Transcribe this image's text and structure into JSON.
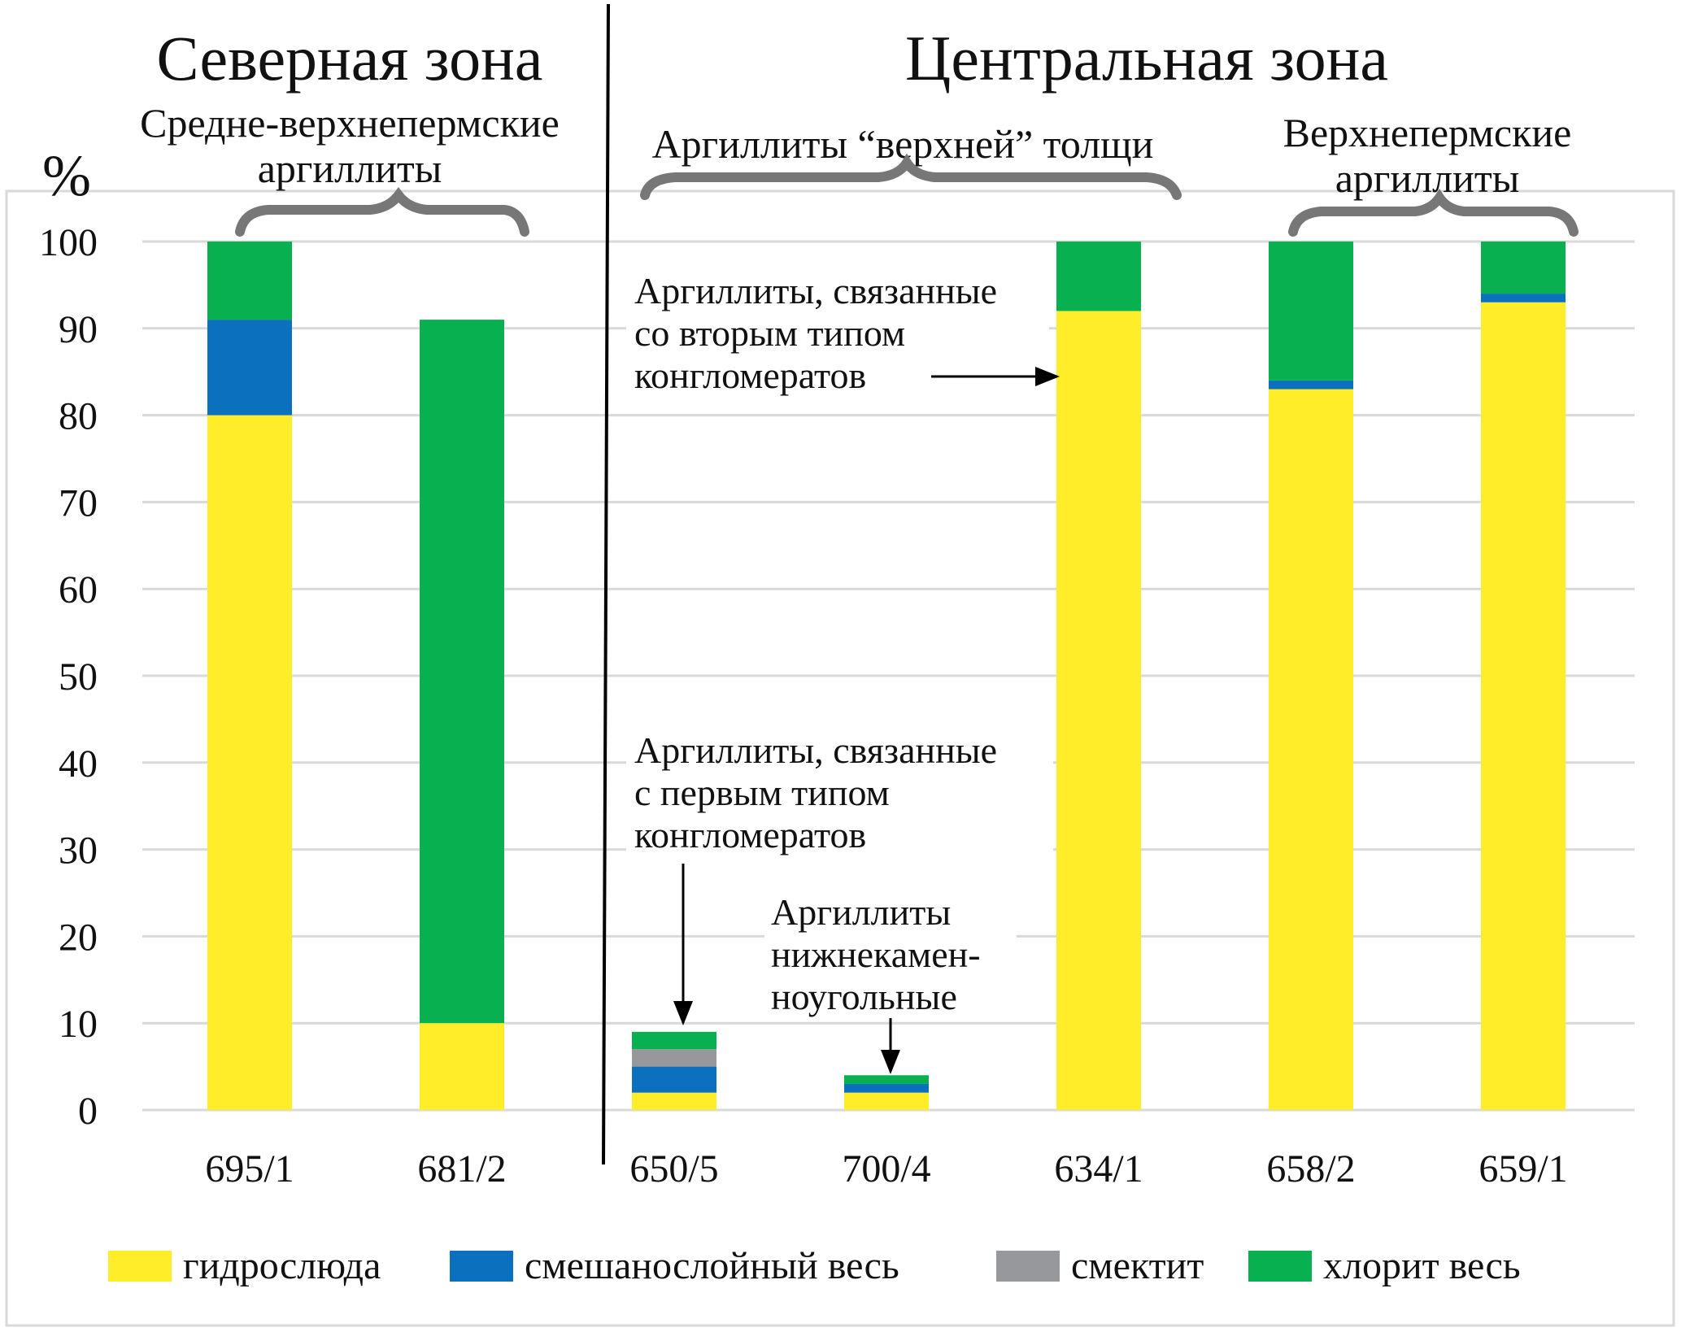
{
  "chart_data": {
    "type": "bar",
    "stacked": true,
    "ylabel": "%",
    "ylim": [
      0,
      100
    ],
    "yticks": [
      0,
      10,
      20,
      30,
      40,
      50,
      60,
      70,
      80,
      90,
      100
    ],
    "grid": true,
    "legend_position": "bottom",
    "categories": [
      "695/1",
      "681/2",
      "650/5",
      "700/4",
      "634/1",
      "658/2",
      "659/1"
    ],
    "series": [
      {
        "name": "гидрослюда",
        "color": "#FFED29",
        "values": [
          80,
          10,
          2,
          2,
          92,
          83,
          93
        ]
      },
      {
        "name": "смешанослойный весь",
        "color": "#0B70BE",
        "values": [
          11,
          0,
          3,
          1,
          0,
          1,
          1
        ]
      },
      {
        "name": "смектит",
        "color": "#97989B",
        "values": [
          0,
          0,
          2,
          0,
          0,
          0,
          0
        ]
      },
      {
        "name": "хлорит весь",
        "color": "#08B04F",
        "values": [
          9,
          81,
          2,
          1,
          8,
          16,
          6
        ]
      }
    ],
    "zones": [
      {
        "title": "Северная зона"
      },
      {
        "title": "Центральная зона"
      }
    ],
    "groups": [
      {
        "lines": [
          "Средне-верхнепермские",
          "аргиллиты"
        ]
      },
      {
        "lines": [
          "Аргиллиты “верхней” толщи"
        ]
      },
      {
        "lines": [
          "Верхнепермские",
          "аргиллиты"
        ]
      }
    ],
    "annotations": [
      {
        "lines": [
          "Аргиллиты, связанные",
          "со вторым типом",
          "конгломератов"
        ],
        "target": "634/1"
      },
      {
        "lines": [
          "Аргиллиты, связанные",
          "с первым типом",
          "конгломератов"
        ],
        "target": "650/5"
      },
      {
        "lines": [
          "Аргиллиты",
          "нижнекамен-",
          "ноугольные"
        ],
        "target": "700/4"
      }
    ]
  }
}
